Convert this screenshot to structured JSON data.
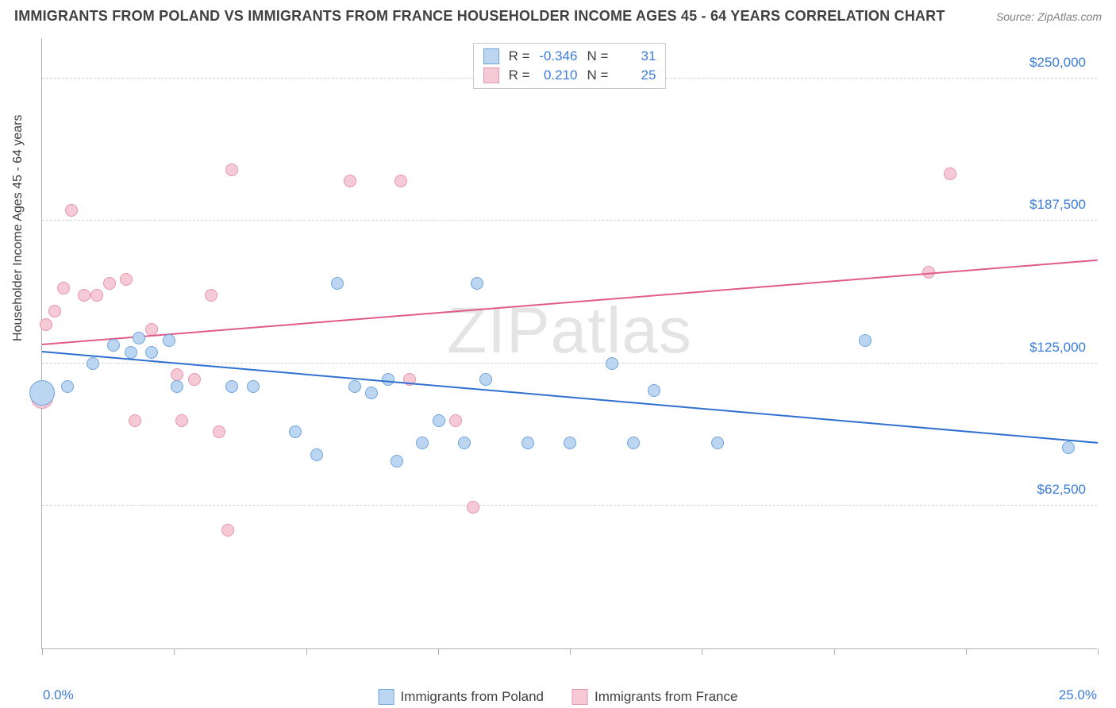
{
  "title": "IMMIGRANTS FROM POLAND VS IMMIGRANTS FROM FRANCE HOUSEHOLDER INCOME AGES 45 - 64 YEARS CORRELATION CHART",
  "source": "Source: ZipAtlas.com",
  "watermark_a": "ZIP",
  "watermark_b": "atlas",
  "ylabel": "Householder Income Ages 45 - 64 years",
  "x_min_label": "0.0%",
  "x_max_label": "25.0%",
  "series": {
    "poland": {
      "name": "Immigrants from Poland",
      "fill": "#bcd6f2",
      "stroke": "#6fa5dd",
      "r_label": "R =",
      "r_value": "-0.346",
      "n_label": "N =",
      "n_value": "31",
      "trend": {
        "color": "#2f6fd0",
        "x1": 0.0,
        "y1": 130000,
        "x2": 25.0,
        "y2": 90000
      },
      "points": [
        {
          "x": 0.0,
          "y": 112000,
          "r": 16
        },
        {
          "x": 0.6,
          "y": 115000,
          "r": 8
        },
        {
          "x": 1.2,
          "y": 125000,
          "r": 8
        },
        {
          "x": 1.7,
          "y": 133000,
          "r": 8
        },
        {
          "x": 2.1,
          "y": 130000,
          "r": 8
        },
        {
          "x": 2.3,
          "y": 136000,
          "r": 8
        },
        {
          "x": 2.6,
          "y": 130000,
          "r": 8
        },
        {
          "x": 3.0,
          "y": 135000,
          "r": 8
        },
        {
          "x": 3.2,
          "y": 115000,
          "r": 8
        },
        {
          "x": 4.5,
          "y": 115000,
          "r": 8
        },
        {
          "x": 5.0,
          "y": 115000,
          "r": 8
        },
        {
          "x": 6.0,
          "y": 95000,
          "r": 8
        },
        {
          "x": 6.5,
          "y": 85000,
          "r": 8
        },
        {
          "x": 7.0,
          "y": 160000,
          "r": 8
        },
        {
          "x": 7.4,
          "y": 115000,
          "r": 8
        },
        {
          "x": 7.8,
          "y": 112000,
          "r": 8
        },
        {
          "x": 8.2,
          "y": 118000,
          "r": 8
        },
        {
          "x": 8.4,
          "y": 82000,
          "r": 8
        },
        {
          "x": 9.0,
          "y": 90000,
          "r": 8
        },
        {
          "x": 9.4,
          "y": 100000,
          "r": 8
        },
        {
          "x": 10.0,
          "y": 90000,
          "r": 8
        },
        {
          "x": 10.3,
          "y": 160000,
          "r": 8
        },
        {
          "x": 10.5,
          "y": 118000,
          "r": 8
        },
        {
          "x": 11.5,
          "y": 90000,
          "r": 8
        },
        {
          "x": 12.5,
          "y": 90000,
          "r": 8
        },
        {
          "x": 13.5,
          "y": 125000,
          "r": 8
        },
        {
          "x": 14.5,
          "y": 113000,
          "r": 8
        },
        {
          "x": 16.0,
          "y": 90000,
          "r": 8
        },
        {
          "x": 19.5,
          "y": 135000,
          "r": 8
        },
        {
          "x": 24.3,
          "y": 88000,
          "r": 8
        },
        {
          "x": 14.0,
          "y": 90000,
          "r": 8
        }
      ]
    },
    "france": {
      "name": "Immigrants from France",
      "fill": "#f6c9d6",
      "stroke": "#e695ad",
      "r_label": "R =",
      "r_value": "0.210",
      "n_label": "N =",
      "n_value": "25",
      "trend": {
        "color": "#e05a8a",
        "x1": 0.0,
        "y1": 133000,
        "x2": 25.0,
        "y2": 170000
      },
      "points": [
        {
          "x": 0.0,
          "y": 110000,
          "r": 14
        },
        {
          "x": 0.1,
          "y": 142000,
          "r": 8
        },
        {
          "x": 0.3,
          "y": 148000,
          "r": 8
        },
        {
          "x": 0.5,
          "y": 158000,
          "r": 8
        },
        {
          "x": 0.7,
          "y": 192000,
          "r": 8
        },
        {
          "x": 1.0,
          "y": 155000,
          "r": 8
        },
        {
          "x": 1.3,
          "y": 155000,
          "r": 8
        },
        {
          "x": 1.6,
          "y": 160000,
          "r": 8
        },
        {
          "x": 2.0,
          "y": 162000,
          "r": 8
        },
        {
          "x": 2.2,
          "y": 100000,
          "r": 8
        },
        {
          "x": 2.6,
          "y": 140000,
          "r": 8
        },
        {
          "x": 3.2,
          "y": 120000,
          "r": 8
        },
        {
          "x": 3.3,
          "y": 100000,
          "r": 8
        },
        {
          "x": 3.6,
          "y": 118000,
          "r": 8
        },
        {
          "x": 4.0,
          "y": 155000,
          "r": 8
        },
        {
          "x": 4.2,
          "y": 95000,
          "r": 8
        },
        {
          "x": 4.4,
          "y": 52000,
          "r": 8
        },
        {
          "x": 4.5,
          "y": 210000,
          "r": 8
        },
        {
          "x": 7.3,
          "y": 205000,
          "r": 8
        },
        {
          "x": 8.5,
          "y": 205000,
          "r": 8
        },
        {
          "x": 8.7,
          "y": 118000,
          "r": 8
        },
        {
          "x": 9.8,
          "y": 100000,
          "r": 8
        },
        {
          "x": 10.2,
          "y": 62000,
          "r": 8
        },
        {
          "x": 21.0,
          "y": 165000,
          "r": 8
        },
        {
          "x": 21.5,
          "y": 208000,
          "r": 8
        }
      ]
    }
  },
  "chart": {
    "type": "scatter",
    "xlim": [
      0,
      25
    ],
    "ylim": [
      0,
      268000
    ],
    "ytick_step": 62500,
    "yticks": [
      62500,
      125000,
      187500,
      250000
    ],
    "ytick_labels": [
      "$62,500",
      "$125,000",
      "$187,500",
      "$250,000"
    ],
    "xticks": [
      0,
      3.125,
      6.25,
      9.375,
      12.5,
      15.625,
      18.75,
      21.875,
      25
    ],
    "background_color": "#ffffff",
    "grid_color": "#d2d2d2",
    "axis_color": "#b0b0b0",
    "title_fontsize": 18,
    "label_fontsize": 16,
    "tick_color": "#3b7dd8"
  }
}
